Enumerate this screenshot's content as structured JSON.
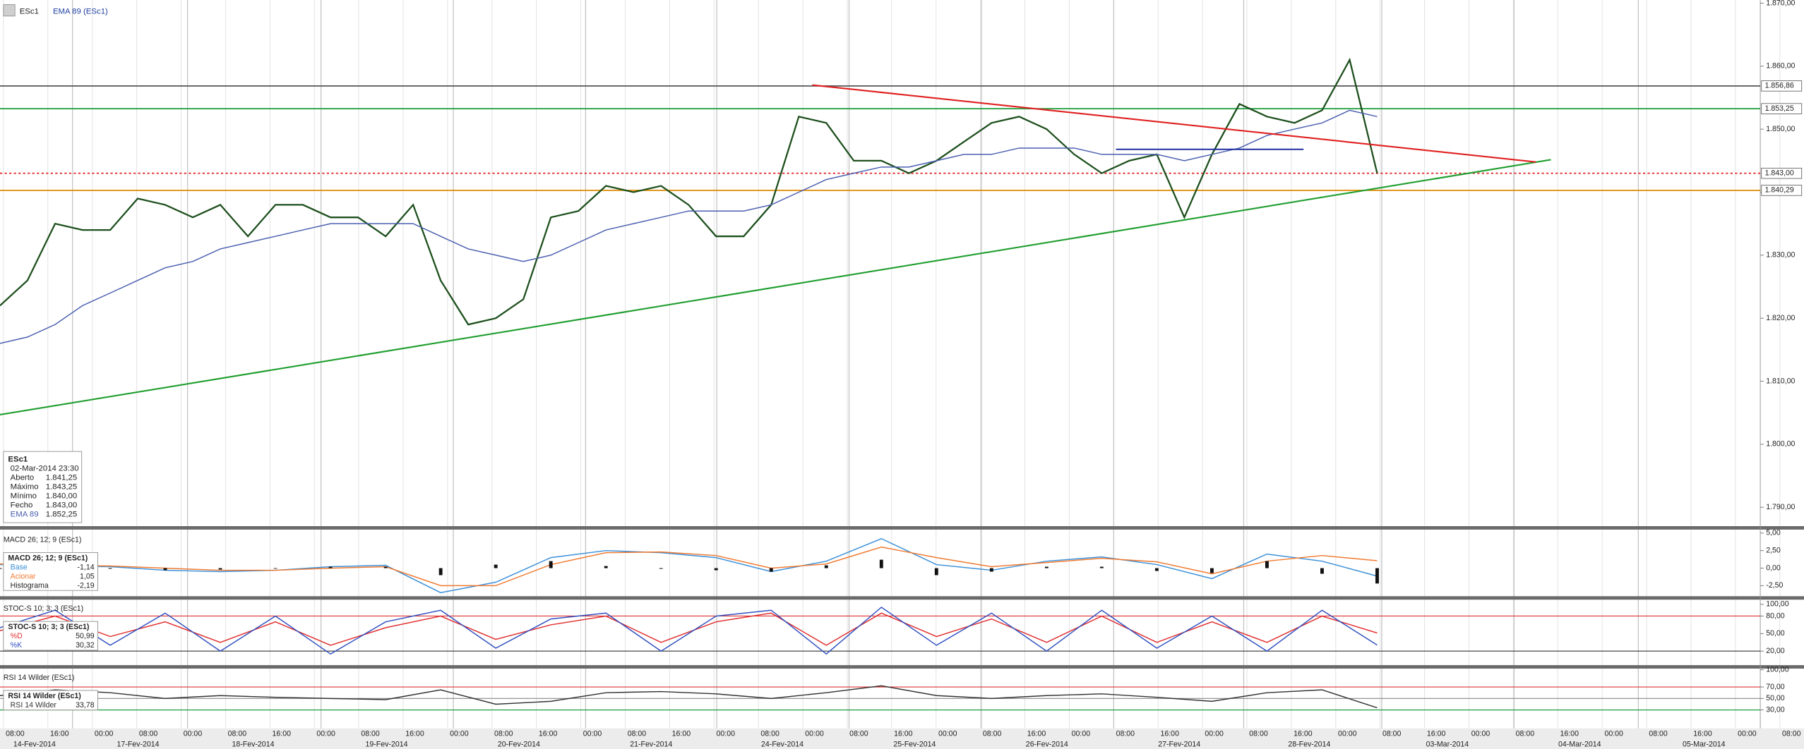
{
  "header": {
    "symbol": "ESc1",
    "indicator": "EMA 89 (ESc1)"
  },
  "info_box": {
    "title": "ESc1",
    "date": "02-Mar-2014 23:30",
    "rows": [
      [
        "Aberto",
        "1.841,25"
      ],
      [
        "Máximo",
        "1.843,25"
      ],
      [
        "Mínimo",
        "1.840,00"
      ],
      [
        "Fecho",
        "1.843,00"
      ],
      [
        "EMA 89",
        "1.852,25"
      ]
    ]
  },
  "x_axis": {
    "times": [
      "08:00",
      "16:00",
      "00:00",
      "08:00",
      "00:00",
      "08:00",
      "16:00",
      "00:00",
      "08:00",
      "16:00",
      "00:00",
      "08:00",
      "16:00",
      "00:00",
      "08:00",
      "16:00",
      "00:00",
      "08:00",
      "00:00",
      "08:00",
      "16:00",
      "00:00",
      "08:00",
      "16:00",
      "00:00",
      "08:00",
      "16:00",
      "00:00",
      "08:00",
      "16:00",
      "00:00",
      "08:00",
      "16:00",
      "00:00",
      "08:00",
      "16:00",
      "00:00",
      "08:00",
      "16:00",
      "00:00",
      "08:00"
    ],
    "dates": [
      "14-Fev-2014",
      "17-Fev-2014",
      "18-Fev-2014",
      "19-Fev-2014",
      "20-Fev-2014",
      "21-Fev-2014",
      "24-Fev-2014",
      "25-Fev-2014",
      "26-Fev-2014",
      "27-Fev-2014",
      "28-Fev-2014",
      "03-Mar-2014",
      "04-Mar-2014",
      "05-Mar-2014"
    ]
  },
  "chart_data": [
    {
      "type": "line",
      "title": "ESc1",
      "ylim": [
        1787,
        1870.5
      ],
      "yticks": [
        {
          "value": 1870,
          "label": "1.870,00"
        },
        {
          "value": 1860,
          "label": "1.860,00"
        },
        {
          "value": 1850,
          "label": "1.850,00"
        },
        {
          "value": 1840,
          "label": "1.840,00"
        },
        {
          "value": 1830,
          "label": "1.830,00"
        },
        {
          "value": 1820,
          "label": "1.820,00"
        },
        {
          "value": 1810,
          "label": "1.810,00"
        },
        {
          "value": 1800,
          "label": "1.800,00"
        },
        {
          "value": 1790,
          "label": "1.790,00"
        }
      ],
      "levels": [
        {
          "value": 1856.86,
          "label": "1.856,86",
          "color": "#555555"
        },
        {
          "value": 1853.25,
          "label": "1.853,25",
          "color": "#1a9e3a"
        },
        {
          "value": 1843,
          "label": "1.843,00",
          "color": "#e03030"
        },
        {
          "value": 1840.29,
          "label": "1.840,29",
          "color": "#e08a00"
        }
      ],
      "series": [
        {
          "name": "ESc1",
          "color": "#1d4f1d",
          "values": [
            1822,
            1826,
            1835,
            1834,
            1834,
            1839,
            1838,
            1836,
            1838,
            1833,
            1838,
            1838,
            1836,
            1836,
            1833,
            1838,
            1826,
            1819,
            1820,
            1823,
            1836,
            1837,
            1841,
            1840,
            1841,
            1838,
            1833,
            1833,
            1838,
            1852,
            1851,
            1845,
            1845,
            1843,
            1845,
            1848,
            1851,
            1852,
            1850,
            1846,
            1843,
            1845,
            1846,
            1836,
            1846,
            1854,
            1852,
            1851,
            1853,
            1861,
            1843
          ]
        },
        {
          "name": "EMA 89 (ESc1)",
          "color": "#4a5fb0",
          "values": [
            1816,
            1817,
            1819,
            1822,
            1824,
            1826,
            1828,
            1829,
            1831,
            1832,
            1833,
            1834,
            1835,
            1835,
            1835,
            1835,
            1833,
            1831,
            1830,
            1829,
            1830,
            1832,
            1834,
            1835,
            1836,
            1837,
            1837,
            1837,
            1838,
            1840,
            1842,
            1843,
            1844,
            1844,
            1845,
            1846,
            1846,
            1847,
            1847,
            1847,
            1846,
            1846,
            1846,
            1845,
            1846,
            1847,
            1849,
            1850,
            1851,
            1853,
            1852
          ]
        }
      ]
    },
    {
      "type": "line",
      "title": "MACD 26; 12; 9 (ESc1)",
      "ylim": [
        -4,
        5.33
      ],
      "yticks": [
        {
          "value": 5,
          "label": "5,00"
        },
        {
          "value": 2.5,
          "label": "2,50"
        },
        {
          "value": 0,
          "label": "0,00"
        },
        {
          "value": -2.5,
          "label": "-2,50"
        }
      ],
      "series": [
        {
          "name": "Base",
          "readout": "-1,14",
          "type": "line",
          "color": "#3a8fd8",
          "values": [
            0.5,
            0.3,
            0.2,
            -0.3,
            -0.5,
            -0.3,
            0.2,
            0.4,
            -3.5,
            -2,
            1.5,
            2.5,
            2.2,
            1.5,
            -0.5,
            1,
            4.2,
            0.5,
            -0.3,
            1,
            1.6,
            0.5,
            -1.5,
            2,
            1,
            -1.14
          ]
        },
        {
          "name": "Acionar",
          "readout": "1,05",
          "type": "line",
          "color": "#f07a30",
          "values": [
            0.6,
            0.4,
            0.3,
            0,
            -0.3,
            -0.3,
            0,
            0.2,
            -2.5,
            -2.5,
            0.5,
            2.2,
            2.3,
            1.8,
            0,
            0.6,
            3,
            1.5,
            0.2,
            0.8,
            1.4,
            0.9,
            -0.8,
            1,
            1.8,
            1.05
          ]
        },
        {
          "name": "Histograma",
          "readout": "-2,19",
          "type": "bar",
          "color": "#111111",
          "values": [
            -0.1,
            -0.1,
            -0.1,
            -0.3,
            -0.2,
            0,
            0.2,
            0.2,
            -1,
            0.5,
            1,
            0.3,
            -0.1,
            -0.3,
            -0.5,
            0.4,
            1.2,
            -1,
            -0.5,
            0.2,
            0.2,
            -0.4,
            -0.7,
            1,
            -0.8,
            -2.19
          ]
        }
      ]
    },
    {
      "type": "line",
      "title": "STOC-S 10; 3; 3 (ESc1)",
      "ylim": [
        -4,
        108
      ],
      "yticks": [
        {
          "value": 100,
          "label": "100,00"
        },
        {
          "value": 80,
          "label": "80,00"
        },
        {
          "value": 50,
          "label": "50,00"
        },
        {
          "value": 20,
          "label": "20,00"
        }
      ],
      "ref_lines": [
        {
          "value": 80,
          "color": "#e03030"
        },
        {
          "value": 20,
          "color": "#333333"
        }
      ],
      "series": [
        {
          "name": "%D",
          "readout": "50,99",
          "type": "line",
          "color": "#e03030",
          "values": [
            55,
            80,
            45,
            70,
            35,
            70,
            30,
            60,
            80,
            40,
            65,
            80,
            35,
            70,
            85,
            30,
            85,
            45,
            75,
            35,
            80,
            35,
            70,
            35,
            80,
            50.99
          ]
        },
        {
          "name": "%K",
          "readout": "30,32",
          "type": "line",
          "color": "#3050c0",
          "values": [
            60,
            90,
            30,
            85,
            20,
            80,
            15,
            70,
            90,
            25,
            75,
            85,
            20,
            80,
            90,
            15,
            95,
            30,
            85,
            20,
            90,
            25,
            80,
            20,
            90,
            30.32
          ]
        }
      ]
    },
    {
      "type": "line",
      "title": "RSI 14 Wilder (ESc1)",
      "ylim": [
        -2,
        102
      ],
      "yticks": [
        {
          "value": 100,
          "label": "100,00"
        },
        {
          "value": 70,
          "label": "70,00"
        },
        {
          "value": 50,
          "label": "50,00"
        },
        {
          "value": 30,
          "label": "30,00"
        }
      ],
      "ref_lines": [
        {
          "value": 70,
          "color": "#e03030"
        },
        {
          "value": 50,
          "color": "#888888"
        },
        {
          "value": 30,
          "color": "#1a9e3a"
        }
      ],
      "series": [
        {
          "name": "RSI 14 Wilder",
          "readout": "33,78",
          "type": "line",
          "color": "#333333",
          "values": [
            55,
            65,
            60,
            50,
            55,
            52,
            50,
            48,
            65,
            40,
            45,
            60,
            62,
            58,
            50,
            60,
            72,
            55,
            50,
            55,
            58,
            52,
            45,
            60,
            65,
            33.78
          ]
        }
      ]
    }
  ]
}
